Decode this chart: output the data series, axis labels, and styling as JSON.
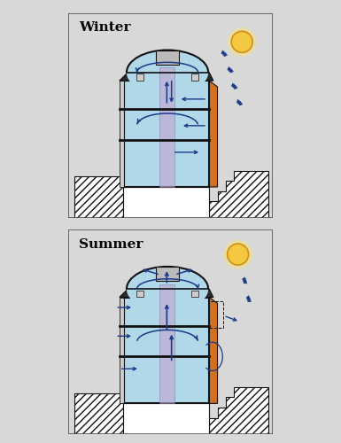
{
  "background_color": "#d8d8d8",
  "panel_bg": "#ffffff",
  "light_blue": "#b0d8e8",
  "orange_fill": "#d07020",
  "dark_gray": "#111111",
  "arrow_color": "#1a3a8a",
  "sun_color": "#f5c842",
  "purple_light": "#c0a8d0",
  "labels": [
    "Winter",
    "Summer"
  ]
}
